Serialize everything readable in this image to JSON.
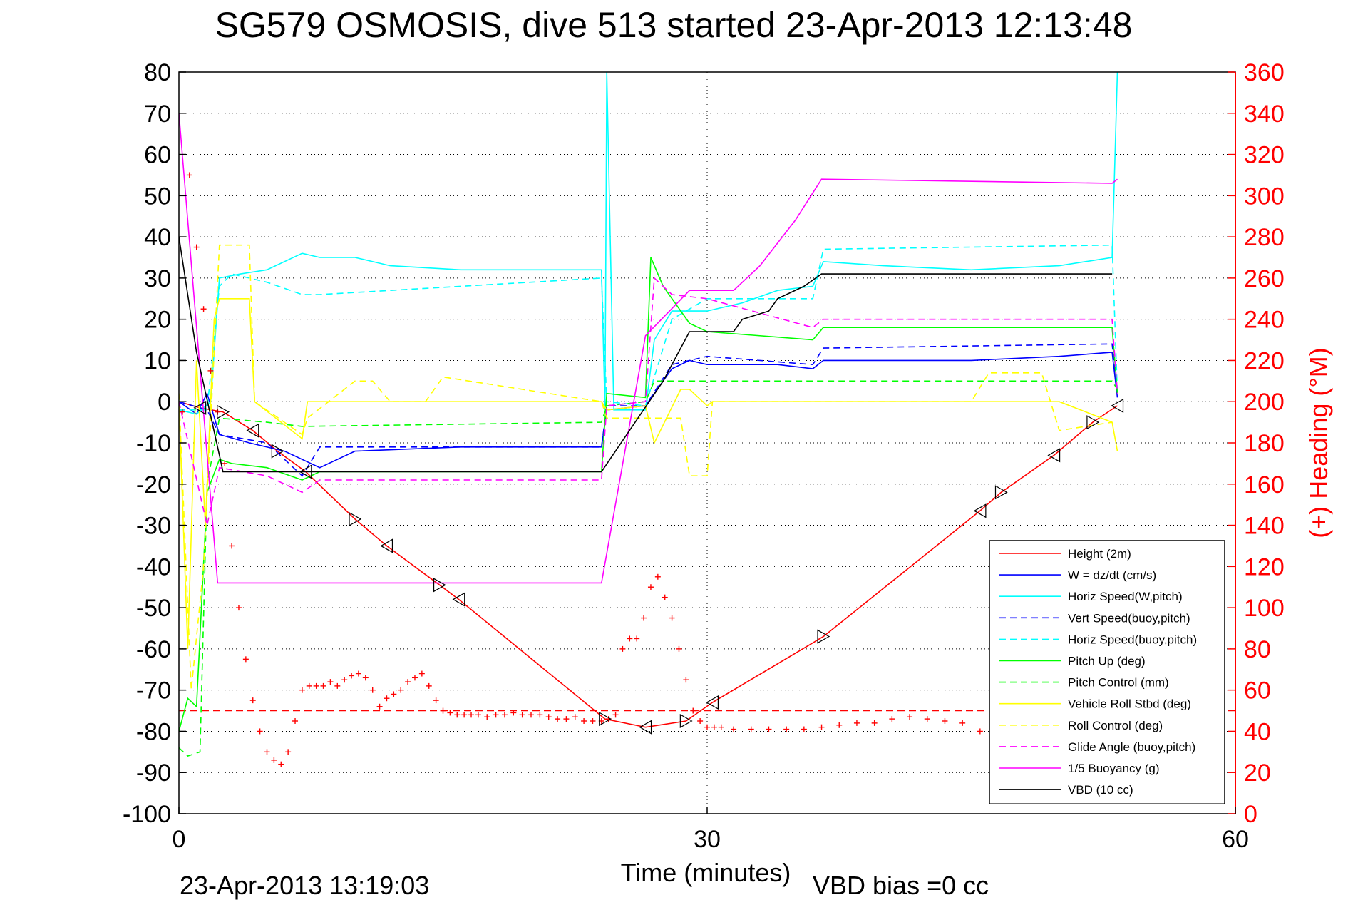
{
  "chart_data": {
    "type": "line",
    "title": "SG579 OSMOSIS, dive 513 started 23-Apr-2013 12:13:48",
    "xlabel": "Time (minutes)",
    "ylabel_left": "",
    "ylabel_right": "(+) Heading (°M)",
    "xlim": [
      0,
      60
    ],
    "ylim_left": [
      -100,
      80
    ],
    "ylim_right": [
      0,
      360
    ],
    "x_ticks": [
      "0",
      "30",
      "60"
    ],
    "y_ticks_left": [
      "80",
      "70",
      "60",
      "50",
      "40",
      "30",
      "20",
      "10",
      "0",
      "-10",
      "-20",
      "-30",
      "-40",
      "-50",
      "-60",
      "-70",
      "-80",
      "-90",
      "-100"
    ],
    "y_ticks_right": [
      "360",
      "340",
      "320",
      "300",
      "280",
      "260",
      "240",
      "220",
      "200",
      "180",
      "160",
      "140",
      "120",
      "100",
      "80",
      "60",
      "40",
      "20",
      "0"
    ],
    "grid": true,
    "legend_position": "lower-right",
    "footer_left": "23-Apr-2013 13:19:03",
    "footer_right": "VBD bias =0 cc",
    "series": [
      {
        "name": "Height (2m)",
        "color": "#ff0000",
        "style": "solid",
        "x": [
          0,
          1.2,
          2.5,
          4.2,
          5.6,
          7.2,
          10,
          11.8,
          14.8,
          15.9,
          24.2,
          26.5,
          28.8,
          30.3,
          36.6,
          45.5,
          46.7,
          49.7,
          51.9,
          53.3
        ],
        "y": [
          0,
          -1.5,
          -2.5,
          -7,
          -12,
          -17,
          -28.5,
          -35,
          -44.5,
          -48,
          -77,
          -79,
          -77.5,
          -73,
          -57,
          -26.5,
          -22,
          -13,
          -5,
          -1
        ]
      },
      {
        "name": "W = dz/dt (cm/s)",
        "color": "#0000ff",
        "style": "solid",
        "x": [
          0,
          1,
          1.6,
          2.3,
          4,
          6,
          8,
          10,
          16,
          20,
          24,
          24.3,
          26.5,
          28,
          29,
          30,
          32,
          34,
          36,
          36.6,
          40,
          45,
          50,
          53,
          53.3
        ],
        "y": [
          0,
          -3,
          2,
          -8,
          -10,
          -12,
          -16,
          -12,
          -11,
          -11,
          -11,
          -2,
          -1,
          8,
          10,
          9,
          9,
          9,
          8,
          10,
          10,
          10,
          11,
          12,
          1
        ]
      },
      {
        "name": "Horiz Speed(W,pitch)",
        "color": "#00ffff",
        "style": "solid",
        "x": [
          0,
          1,
          1.8,
          2.3,
          3.5,
          5,
          7,
          8,
          10,
          12,
          16,
          20,
          24,
          24.2,
          24.3,
          24.7,
          26.5,
          27,
          28,
          28.5,
          30,
          32,
          34,
          36,
          36.6,
          40,
          45,
          50,
          53,
          53.3
        ],
        "y": [
          -2,
          -3,
          0,
          30,
          31,
          32,
          36,
          35,
          35,
          33,
          32,
          32,
          32,
          -2,
          80,
          -2,
          -2,
          15,
          22,
          22,
          22,
          24,
          27,
          28,
          34,
          33,
          32,
          33,
          35,
          80
        ]
      },
      {
        "name": "Vert Speed(buoy,pitch)",
        "color": "#0000ff",
        "style": "dashed",
        "x": [
          0,
          1.6,
          2.3,
          5,
          7,
          8,
          24,
          24.3,
          26.5,
          28,
          30,
          36,
          36.6,
          53,
          53.3
        ],
        "y": [
          0,
          -2,
          -8,
          -10,
          -18,
          -11,
          -11,
          -1,
          -1,
          9,
          11,
          9,
          13,
          14,
          2
        ]
      },
      {
        "name": "Horiz Speed(buoy,pitch)",
        "color": "#00ffff",
        "style": "dashed",
        "x": [
          0,
          1.6,
          2.3,
          3,
          5,
          7,
          8,
          24,
          24.3,
          26.5,
          28,
          30,
          36,
          36.6,
          53,
          53.3
        ],
        "y": [
          -2,
          -2,
          28,
          31,
          29,
          26,
          26,
          30,
          0,
          -1,
          20,
          25,
          25,
          37,
          38,
          2
        ]
      },
      {
        "name": "Pitch Up (deg)",
        "color": "#00ff00",
        "style": "solid",
        "x": [
          0,
          0.5,
          1,
          1.6,
          2.3,
          3,
          5,
          7,
          8,
          10,
          24,
          24.3,
          26.5,
          26.8,
          27.5,
          29,
          30,
          36,
          36.6,
          45,
          53,
          53.3
        ],
        "y": [
          -80,
          -72,
          -74,
          -22,
          -14,
          -15,
          -16,
          -19,
          -17,
          -17,
          -17,
          2,
          1,
          35,
          28,
          19,
          17,
          15,
          18,
          18,
          18,
          2
        ]
      },
      {
        "name": "Pitch Control (mm)",
        "color": "#00ff00",
        "style": "dashed",
        "x": [
          0,
          0.5,
          1.2,
          1.6,
          2.3,
          5,
          7,
          24,
          24.3,
          26.5,
          27,
          30,
          36,
          53,
          53.3
        ],
        "y": [
          -84,
          -86,
          -85,
          -20,
          -4,
          -5,
          -6,
          -5,
          -1,
          0,
          5,
          5,
          5,
          5,
          3
        ]
      },
      {
        "name": "Vehicle Roll Stbd (deg)",
        "color": "#ffff00",
        "style": "solid",
        "x": [
          0,
          0.5,
          1,
          1.5,
          2,
          2.3,
          4,
          4.3,
          7,
          7.3,
          24,
          24.3,
          26.5,
          27,
          28.5,
          29,
          30,
          30.3,
          45,
          50,
          53,
          53.3
        ],
        "y": [
          0,
          -60,
          10,
          -30,
          20,
          25,
          25,
          0,
          -9,
          0,
          0,
          -2,
          -1,
          -10,
          3,
          3,
          -1,
          0,
          0,
          0,
          -5,
          -12
        ]
      },
      {
        "name": "Roll Control (deg)",
        "color": "#ffff00",
        "style": "dashed",
        "x": [
          0,
          0.7,
          1.4,
          2.3,
          4,
          4.3,
          7,
          7.3,
          10,
          11,
          12,
          14,
          15,
          24,
          24.3,
          28.5,
          29,
          30,
          30.3,
          45,
          46,
          49,
          50,
          53
        ],
        "y": [
          2,
          -70,
          -40,
          38,
          38,
          0,
          -8,
          -4,
          5,
          5,
          0,
          0,
          6,
          0,
          -4,
          -4,
          -18,
          -18,
          0,
          0,
          7,
          7,
          -7,
          -5
        ]
      },
      {
        "name": "Glide Angle (buoy,pitch)",
        "color": "#ff00ff",
        "style": "dashed",
        "x": [
          0,
          1.6,
          2.3,
          5,
          7,
          8,
          24,
          24.3,
          26.5,
          27,
          28,
          30,
          36,
          36.6,
          53,
          53.3
        ],
        "y": [
          0,
          -30,
          -16,
          -18,
          -22,
          -19,
          -19,
          -1,
          0,
          30,
          26,
          25,
          18,
          20,
          20,
          2
        ]
      },
      {
        "name": "1/5 Buoyancy (g)",
        "color": "#ff00ff",
        "style": "solid",
        "x": [
          0,
          2.2,
          24,
          26.5,
          29,
          31.5,
          33,
          35,
          36.5,
          53,
          53.3
        ],
        "y": [
          70,
          -44,
          -44,
          16,
          27,
          27,
          33,
          44,
          54,
          53,
          54
        ]
      },
      {
        "name": "VBD (10 cc)",
        "color": "#000000",
        "style": "solid",
        "x": [
          0,
          1,
          2.3,
          2.5,
          24,
          27.5,
          29,
          31.5,
          32,
          33.5,
          34,
          35.5,
          36.5,
          53
        ],
        "y": [
          40,
          12,
          -13,
          -17,
          -17,
          5,
          17,
          17,
          20,
          22,
          25,
          28,
          31,
          31
        ]
      }
    ],
    "heading_points": {
      "name": "Heading",
      "axis": "right",
      "color": "#ff0000",
      "x": [
        0.2,
        0.6,
        1.0,
        1.4,
        1.8,
        2.2,
        2.6,
        3.0,
        3.4,
        3.8,
        4.2,
        4.6,
        5.0,
        5.4,
        5.8,
        6.2,
        6.6,
        7.0,
        7.4,
        7.8,
        8.2,
        8.6,
        9.0,
        9.4,
        9.8,
        10.2,
        10.6,
        11.0,
        11.4,
        11.8,
        12.2,
        12.6,
        13.0,
        13.4,
        13.8,
        14.2,
        14.6,
        15.0,
        15.4,
        15.8,
        16.2,
        16.6,
        17.0,
        17.5,
        18.0,
        18.5,
        19.0,
        19.5,
        20.0,
        20.5,
        21.0,
        21.5,
        22.0,
        22.5,
        23.0,
        23.5,
        24.0,
        24.4,
        24.8,
        25.2,
        25.6,
        26.0,
        26.4,
        26.8,
        27.2,
        27.6,
        28.0,
        28.4,
        28.8,
        29.2,
        29.6,
        30.0,
        30.4,
        30.8,
        31.5,
        32.5,
        33.5,
        34.5,
        35.5,
        36.5,
        37.5,
        38.5,
        39.5,
        40.5,
        41.5,
        42.5,
        43.5,
        44.5,
        45.5,
        46.5,
        47.5,
        48.5,
        49.5,
        50.5,
        51.5,
        52.5
      ],
      "y": [
        195,
        310,
        275,
        245,
        215,
        195,
        170,
        130,
        100,
        75,
        55,
        40,
        30,
        26,
        24,
        30,
        45,
        60,
        62,
        62,
        62,
        64,
        62,
        65,
        67,
        68,
        66,
        60,
        52,
        56,
        58,
        60,
        64,
        66,
        68,
        62,
        55,
        50,
        49,
        48,
        48,
        48,
        48,
        47,
        48,
        48,
        49,
        48,
        48,
        48,
        47,
        46,
        46,
        47,
        45,
        45,
        45,
        46,
        48,
        80,
        85,
        85,
        95,
        110,
        115,
        105,
        95,
        80,
        65,
        50,
        45,
        42,
        42,
        42,
        41,
        41,
        41,
        41,
        41,
        42,
        43,
        44,
        44,
        46,
        47,
        46,
        45,
        44,
        40,
        38,
        37,
        38,
        38,
        40,
        42,
        42
      ]
    },
    "heading_target": {
      "name": "Heading target",
      "axis": "right",
      "value": 50,
      "color": "#ff0000",
      "style": "dashed"
    },
    "triangle_markers": {
      "x": [
        1.2,
        2.5,
        4.2,
        5.6,
        7.2,
        10,
        11.8,
        14.8,
        15.9,
        24.2,
        26.5,
        28.8,
        30.3,
        36.6,
        45.5,
        46.7,
        49.7,
        51.9,
        53.3
      ],
      "y": [
        -1.5,
        -2.5,
        -7,
        -12,
        -17,
        -28.5,
        -35,
        -44.5,
        -48,
        -77,
        -79,
        -77.5,
        -73,
        -57,
        -26.5,
        -22,
        -13,
        -5,
        -1
      ]
    }
  }
}
